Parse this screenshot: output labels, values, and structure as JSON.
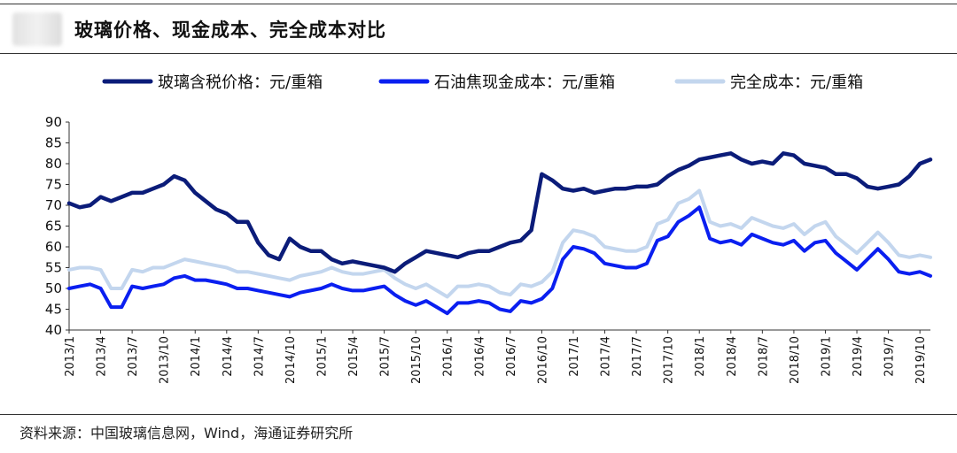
{
  "header": {
    "title": "玻璃价格、现金成本、完全成本对比"
  },
  "footer": {
    "source": "资料来源：中国玻璃信息网，Wind，海通证券研究所"
  },
  "colors": {
    "series1": "#0b1c79",
    "series2": "#0a1ff0",
    "series3": "#c3d6ee"
  },
  "chart_data": {
    "type": "line",
    "title": "玻璃价格、现金成本、完全成本对比",
    "xlabel": "",
    "ylabel": "",
    "ylim": [
      40,
      90
    ],
    "yticks": [
      40,
      45,
      50,
      55,
      60,
      65,
      70,
      75,
      80,
      85,
      90
    ],
    "grid": false,
    "legend_position": "top",
    "xticks": [
      "2013/1",
      "2013/4",
      "2013/7",
      "2013/10",
      "2014/1",
      "2014/4",
      "2014/7",
      "2014/10",
      "2015/1",
      "2015/4",
      "2015/7",
      "2015/10",
      "2016/1",
      "2016/4",
      "2016/7",
      "2016/10",
      "2017/1",
      "2017/4",
      "2017/7",
      "2017/10",
      "2018/1",
      "2018/4",
      "2018/7",
      "2018/10",
      "2019/1",
      "2019/4",
      "2019/7",
      "2019/10"
    ],
    "series": [
      {
        "name": "玻璃含税价格：元/重箱",
        "color": "#0b1c79",
        "points": [
          [
            "2013/01",
            70.5
          ],
          [
            "2013/02",
            69.5
          ],
          [
            "2013/03",
            70
          ],
          [
            "2013/04",
            72
          ],
          [
            "2013/05",
            71
          ],
          [
            "2013/06",
            72
          ],
          [
            "2013/07",
            73
          ],
          [
            "2013/08",
            73
          ],
          [
            "2013/09",
            74
          ],
          [
            "2013/10",
            75
          ],
          [
            "2013/11",
            77
          ],
          [
            "2013/12",
            76
          ],
          [
            "2014/01",
            73
          ],
          [
            "2014/02",
            71
          ],
          [
            "2014/03",
            69
          ],
          [
            "2014/04",
            68
          ],
          [
            "2014/05",
            66
          ],
          [
            "2014/06",
            66
          ],
          [
            "2014/07",
            61
          ],
          [
            "2014/08",
            58
          ],
          [
            "2014/09",
            57
          ],
          [
            "2014/10",
            62
          ],
          [
            "2014/11",
            60
          ],
          [
            "2014/12",
            59
          ],
          [
            "2015/01",
            59
          ],
          [
            "2015/02",
            57
          ],
          [
            "2015/03",
            56
          ],
          [
            "2015/04",
            56.5
          ],
          [
            "2015/05",
            56
          ],
          [
            "2015/06",
            55.5
          ],
          [
            "2015/07",
            55
          ],
          [
            "2015/08",
            54
          ],
          [
            "2015/09",
            56
          ],
          [
            "2015/10",
            57.5
          ],
          [
            "2015/11",
            59
          ],
          [
            "2015/12",
            58.5
          ],
          [
            "2016/01",
            58
          ],
          [
            "2016/02",
            57.5
          ],
          [
            "2016/03",
            58.5
          ],
          [
            "2016/04",
            59
          ],
          [
            "2016/05",
            59
          ],
          [
            "2016/06",
            60
          ],
          [
            "2016/07",
            61
          ],
          [
            "2016/08",
            61.5
          ],
          [
            "2016/09",
            64
          ],
          [
            "2016/10",
            77.5
          ],
          [
            "2016/11",
            76
          ],
          [
            "2016/12",
            74
          ],
          [
            "2017/01",
            73.5
          ],
          [
            "2017/02",
            74
          ],
          [
            "2017/03",
            73
          ],
          [
            "2017/04",
            73.5
          ],
          [
            "2017/05",
            74
          ],
          [
            "2017/06",
            74
          ],
          [
            "2017/07",
            74.5
          ],
          [
            "2017/08",
            74.5
          ],
          [
            "2017/09",
            75
          ],
          [
            "2017/10",
            77
          ],
          [
            "2017/11",
            78.5
          ],
          [
            "2017/12",
            79.5
          ],
          [
            "2018/01",
            81
          ],
          [
            "2018/02",
            81.5
          ],
          [
            "2018/03",
            82
          ],
          [
            "2018/04",
            82.5
          ],
          [
            "2018/05",
            81
          ],
          [
            "2018/06",
            80
          ],
          [
            "2018/07",
            80.5
          ],
          [
            "2018/08",
            80
          ],
          [
            "2018/09",
            82.5
          ],
          [
            "2018/10",
            82
          ],
          [
            "2018/11",
            80
          ],
          [
            "2018/12",
            79.5
          ],
          [
            "2019/01",
            79
          ],
          [
            "2019/02",
            77.5
          ],
          [
            "2019/03",
            77.5
          ],
          [
            "2019/04",
            76.5
          ],
          [
            "2019/05",
            74.5
          ],
          [
            "2019/06",
            74
          ],
          [
            "2019/07",
            74.5
          ],
          [
            "2019/08",
            75
          ],
          [
            "2019/09",
            77
          ],
          [
            "2019/10",
            80
          ],
          [
            "2019/11",
            81
          ]
        ]
      },
      {
        "name": "石油焦现金成本：元/重箱",
        "color": "#0a1ff0",
        "points": [
          [
            "2013/01",
            50
          ],
          [
            "2013/02",
            50.5
          ],
          [
            "2013/03",
            51
          ],
          [
            "2013/04",
            50
          ],
          [
            "2013/05",
            45.5
          ],
          [
            "2013/06",
            45.5
          ],
          [
            "2013/07",
            50.5
          ],
          [
            "2013/08",
            50
          ],
          [
            "2013/09",
            50.5
          ],
          [
            "2013/10",
            51
          ],
          [
            "2013/11",
            52.5
          ],
          [
            "2013/12",
            53
          ],
          [
            "2014/01",
            52
          ],
          [
            "2014/02",
            52
          ],
          [
            "2014/03",
            51.5
          ],
          [
            "2014/04",
            51
          ],
          [
            "2014/05",
            50
          ],
          [
            "2014/06",
            50
          ],
          [
            "2014/07",
            49.5
          ],
          [
            "2014/08",
            49
          ],
          [
            "2014/09",
            48.5
          ],
          [
            "2014/10",
            48
          ],
          [
            "2014/11",
            49
          ],
          [
            "2014/12",
            49.5
          ],
          [
            "2015/01",
            50
          ],
          [
            "2015/02",
            51
          ],
          [
            "2015/03",
            50
          ],
          [
            "2015/04",
            49.5
          ],
          [
            "2015/05",
            49.5
          ],
          [
            "2015/06",
            50
          ],
          [
            "2015/07",
            50.5
          ],
          [
            "2015/08",
            48.5
          ],
          [
            "2015/09",
            47
          ],
          [
            "2015/10",
            46
          ],
          [
            "2015/11",
            47
          ],
          [
            "2015/12",
            45.5
          ],
          [
            "2016/01",
            44
          ],
          [
            "2016/02",
            46.5
          ],
          [
            "2016/03",
            46.5
          ],
          [
            "2016/04",
            47
          ],
          [
            "2016/05",
            46.5
          ],
          [
            "2016/06",
            45
          ],
          [
            "2016/07",
            44.5
          ],
          [
            "2016/08",
            47
          ],
          [
            "2016/09",
            46.5
          ],
          [
            "2016/10",
            47.5
          ],
          [
            "2016/11",
            50
          ],
          [
            "2016/12",
            57
          ],
          [
            "2017/01",
            60
          ],
          [
            "2017/02",
            59.5
          ],
          [
            "2017/03",
            58.5
          ],
          [
            "2017/04",
            56
          ],
          [
            "2017/05",
            55.5
          ],
          [
            "2017/06",
            55
          ],
          [
            "2017/07",
            55
          ],
          [
            "2017/08",
            56
          ],
          [
            "2017/09",
            61.5
          ],
          [
            "2017/10",
            62.5
          ],
          [
            "2017/11",
            66
          ],
          [
            "2017/12",
            67.5
          ],
          [
            "2018/01",
            69.5
          ],
          [
            "2018/02",
            62
          ],
          [
            "2018/03",
            61
          ],
          [
            "2018/04",
            61.5
          ],
          [
            "2018/05",
            60.5
          ],
          [
            "2018/06",
            63
          ],
          [
            "2018/07",
            62
          ],
          [
            "2018/08",
            61
          ],
          [
            "2018/09",
            60.5
          ],
          [
            "2018/10",
            61.5
          ],
          [
            "2018/11",
            59
          ],
          [
            "2018/12",
            61
          ],
          [
            "2019/01",
            61.5
          ],
          [
            "2019/02",
            58.5
          ],
          [
            "2019/03",
            56.5
          ],
          [
            "2019/04",
            54.5
          ],
          [
            "2019/05",
            57
          ],
          [
            "2019/06",
            59.5
          ],
          [
            "2019/07",
            57
          ],
          [
            "2019/08",
            54
          ],
          [
            "2019/09",
            53.5
          ],
          [
            "2019/10",
            54
          ],
          [
            "2019/11",
            53
          ]
        ]
      },
      {
        "name": "完全成本：元/重箱",
        "color": "#c3d6ee",
        "points": [
          [
            "2013/01",
            54.5
          ],
          [
            "2013/02",
            55
          ],
          [
            "2013/03",
            55
          ],
          [
            "2013/04",
            54.5
          ],
          [
            "2013/05",
            50
          ],
          [
            "2013/06",
            50
          ],
          [
            "2013/07",
            54.5
          ],
          [
            "2013/08",
            54
          ],
          [
            "2013/09",
            55
          ],
          [
            "2013/10",
            55
          ],
          [
            "2013/11",
            56
          ],
          [
            "2013/12",
            57
          ],
          [
            "2014/01",
            56.5
          ],
          [
            "2014/02",
            56
          ],
          [
            "2014/03",
            55.5
          ],
          [
            "2014/04",
            55
          ],
          [
            "2014/05",
            54
          ],
          [
            "2014/06",
            54
          ],
          [
            "2014/07",
            53.5
          ],
          [
            "2014/08",
            53
          ],
          [
            "2014/09",
            52.5
          ],
          [
            "2014/10",
            52
          ],
          [
            "2014/11",
            53
          ],
          [
            "2014/12",
            53.5
          ],
          [
            "2015/01",
            54
          ],
          [
            "2015/02",
            55
          ],
          [
            "2015/03",
            54
          ],
          [
            "2015/04",
            53.5
          ],
          [
            "2015/05",
            53.5
          ],
          [
            "2015/06",
            54
          ],
          [
            "2015/07",
            54.5
          ],
          [
            "2015/08",
            52.5
          ],
          [
            "2015/09",
            51
          ],
          [
            "2015/10",
            50
          ],
          [
            "2015/11",
            51
          ],
          [
            "2015/12",
            49.5
          ],
          [
            "2016/01",
            48
          ],
          [
            "2016/02",
            50.5
          ],
          [
            "2016/03",
            50.5
          ],
          [
            "2016/04",
            51
          ],
          [
            "2016/05",
            50.5
          ],
          [
            "2016/06",
            49
          ],
          [
            "2016/07",
            48.5
          ],
          [
            "2016/08",
            51
          ],
          [
            "2016/09",
            50.5
          ],
          [
            "2016/10",
            51.5
          ],
          [
            "2016/11",
            54
          ],
          [
            "2016/12",
            61
          ],
          [
            "2017/01",
            64
          ],
          [
            "2017/02",
            63.5
          ],
          [
            "2017/03",
            62.5
          ],
          [
            "2017/04",
            60
          ],
          [
            "2017/05",
            59.5
          ],
          [
            "2017/06",
            59
          ],
          [
            "2017/07",
            59
          ],
          [
            "2017/08",
            60
          ],
          [
            "2017/09",
            65.5
          ],
          [
            "2017/10",
            66.5
          ],
          [
            "2017/11",
            70.5
          ],
          [
            "2017/12",
            71.5
          ],
          [
            "2018/01",
            73.5
          ],
          [
            "2018/02",
            66
          ],
          [
            "2018/03",
            65
          ],
          [
            "2018/04",
            65.5
          ],
          [
            "2018/05",
            64.5
          ],
          [
            "2018/06",
            67
          ],
          [
            "2018/07",
            66
          ],
          [
            "2018/08",
            65
          ],
          [
            "2018/09",
            64.5
          ],
          [
            "2018/10",
            65.5
          ],
          [
            "2018/11",
            63
          ],
          [
            "2018/12",
            65
          ],
          [
            "2019/01",
            66
          ],
          [
            "2019/02",
            62.5
          ],
          [
            "2019/03",
            60.5
          ],
          [
            "2019/04",
            58.5
          ],
          [
            "2019/05",
            61
          ],
          [
            "2019/06",
            63.5
          ],
          [
            "2019/07",
            61
          ],
          [
            "2019/08",
            58
          ],
          [
            "2019/09",
            57.5
          ],
          [
            "2019/10",
            58
          ],
          [
            "2019/11",
            57.5
          ]
        ]
      }
    ]
  }
}
